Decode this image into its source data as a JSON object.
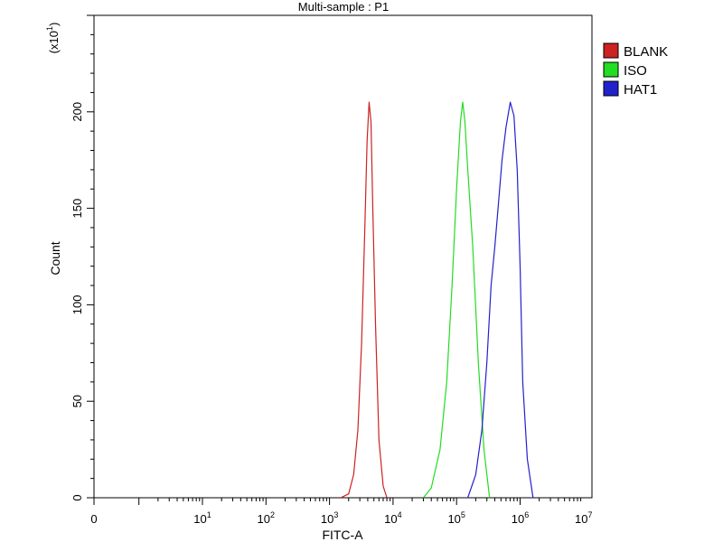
{
  "chart_data": {
    "type": "line",
    "title": "Multi-sample : P1",
    "xlabel": "FITC-A",
    "ylabel": "Count",
    "y_multiplier_label": "(x10",
    "y_multiplier_exp": "1",
    "y_multiplier_close": ")",
    "x_scale": "log",
    "x_tick_labels": [
      {
        "base": "0",
        "exp": ""
      },
      {
        "base": "10",
        "exp": "1"
      },
      {
        "base": "10",
        "exp": "2"
      },
      {
        "base": "10",
        "exp": "3"
      },
      {
        "base": "10",
        "exp": "4"
      },
      {
        "base": "10",
        "exp": "5"
      },
      {
        "base": "10",
        "exp": "6"
      },
      {
        "base": "10",
        "exp": "7"
      }
    ],
    "y_ticks": [
      0,
      50,
      100,
      150,
      200
    ],
    "ylim": [
      0,
      250
    ],
    "grid": false,
    "legend_position": "top-right",
    "series": [
      {
        "name": "BLANK",
        "color": "#cc2222",
        "points": [
          [
            1500,
            0
          ],
          [
            2000,
            2
          ],
          [
            2400,
            12
          ],
          [
            2800,
            35
          ],
          [
            3200,
            80
          ],
          [
            3600,
            140
          ],
          [
            3900,
            185
          ],
          [
            4200,
            205
          ],
          [
            4500,
            195
          ],
          [
            4800,
            150
          ],
          [
            5300,
            90
          ],
          [
            6000,
            30
          ],
          [
            7000,
            6
          ],
          [
            8000,
            0
          ]
        ]
      },
      {
        "name": "ISO",
        "color": "#22dd22",
        "points": [
          [
            30000,
            0
          ],
          [
            40000,
            5
          ],
          [
            55000,
            25
          ],
          [
            70000,
            60
          ],
          [
            85000,
            110
          ],
          [
            100000,
            160
          ],
          [
            115000,
            195
          ],
          [
            125000,
            205
          ],
          [
            135000,
            195
          ],
          [
            150000,
            170
          ],
          [
            180000,
            130
          ],
          [
            220000,
            70
          ],
          [
            270000,
            25
          ],
          [
            330000,
            0
          ]
        ]
      },
      {
        "name": "HAT1",
        "color": "#2222cc",
        "points": [
          [
            150000,
            0
          ],
          [
            200000,
            12
          ],
          [
            250000,
            35
          ],
          [
            300000,
            70
          ],
          [
            350000,
            110
          ],
          [
            400000,
            130
          ],
          [
            450000,
            150
          ],
          [
            520000,
            175
          ],
          [
            600000,
            192
          ],
          [
            700000,
            205
          ],
          [
            800000,
            198
          ],
          [
            900000,
            170
          ],
          [
            1000000,
            120
          ],
          [
            1100000,
            60
          ],
          [
            1300000,
            20
          ],
          [
            1600000,
            0
          ]
        ]
      }
    ]
  }
}
